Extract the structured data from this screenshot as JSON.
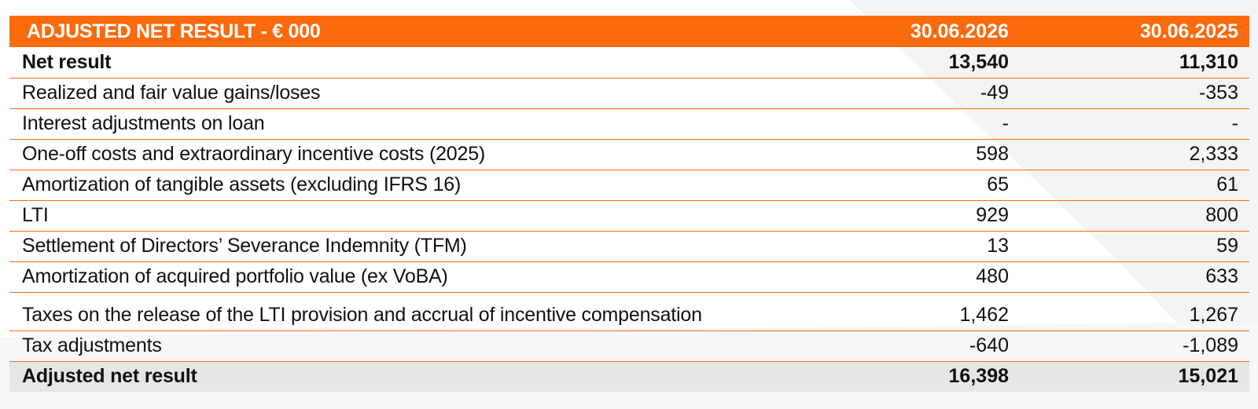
{
  "table": {
    "header": {
      "title": "ADJUSTED NET RESULT - € 000",
      "col1": "30.06.2026",
      "col2": "30.06.2025"
    },
    "rows": [
      {
        "label": "Net result",
        "v1": "13,540",
        "v2": "11,310"
      },
      {
        "label": "Realized and fair value gains/loses",
        "v1": "-49",
        "v2": "-353"
      },
      {
        "label": "Interest adjustments on loan",
        "v1": "-",
        "v2": "-"
      },
      {
        "label": "One-off costs and extraordinary incentive costs (2025)",
        "v1": "598",
        "v2": "2,333"
      },
      {
        "label": "Amortization of tangible assets (excluding IFRS 16)",
        "v1": "65",
        "v2": "61"
      },
      {
        "label": "LTI",
        "v1": "929",
        "v2": "800"
      },
      {
        "label": "Settlement of Directors’ Severance Indemnity (TFM)",
        "v1": "13",
        "v2": "59"
      },
      {
        "label": "Amortization of acquired portfolio value (ex VoBA)",
        "v1": "480",
        "v2": "633"
      },
      {
        "label": "Taxes on the release of the LTI provision and accrual of incentive compensation",
        "v1": "1,462",
        "v2": "1,267"
      },
      {
        "label": "Tax adjustments",
        "v1": "-640",
        "v2": "-1,089"
      },
      {
        "label": "Adjusted net result",
        "v1": "16,398",
        "v2": "15,021"
      }
    ]
  },
  "colors": {
    "accent": "#fb6a0c",
    "total_row_bg": "#e6e6e6",
    "background_shape": "#f3f3f3"
  }
}
